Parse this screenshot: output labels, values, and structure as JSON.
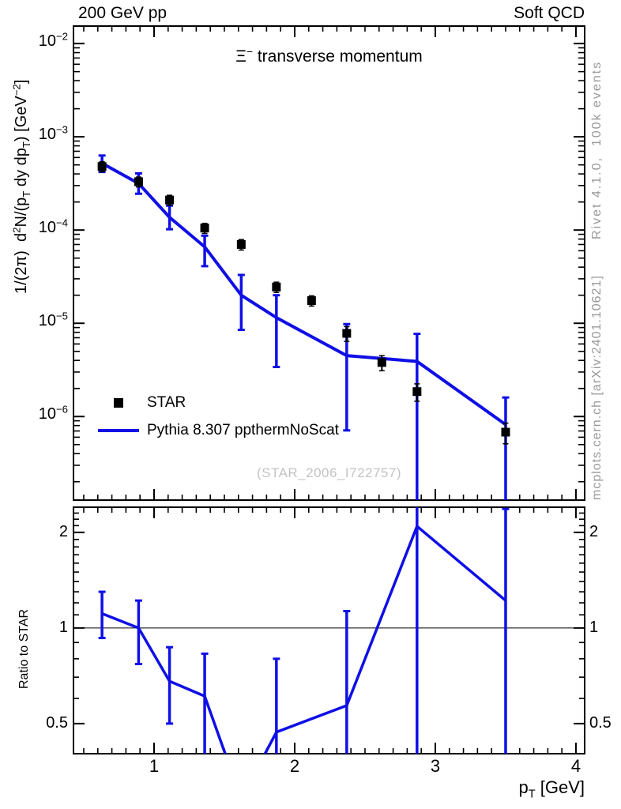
{
  "header": {
    "left": "200 GeV pp",
    "right": "Soft QCD"
  },
  "title_segments": [
    {
      "t": "Ξ",
      "s": ""
    },
    {
      "t": "−",
      "s": "sup"
    },
    {
      "t": " transverse momentum",
      "s": ""
    }
  ],
  "axis_labels": {
    "y_main_segments": [
      {
        "t": "1/(2π)  d",
        "s": ""
      },
      {
        "t": "2",
        "s": "sup"
      },
      {
        "t": "N/(p",
        "s": ""
      },
      {
        "t": "T",
        "s": "sub"
      },
      {
        "t": " dy dp",
        "s": ""
      },
      {
        "t": "T",
        "s": "sub"
      },
      {
        "t": ") [GeV",
        "s": ""
      },
      {
        "t": "−2",
        "s": "sup"
      },
      {
        "t": "]",
        "s": ""
      }
    ],
    "x_segments": [
      {
        "t": "p",
        "s": ""
      },
      {
        "t": "T",
        "s": "sub"
      },
      {
        "t": " [GeV]",
        "s": ""
      }
    ],
    "ratio": "Ratio to STAR"
  },
  "side_notes": {
    "top_right": "Rivet 4.1.0,  100k events",
    "bottom_right": "mcplots.cern.ch [arXiv:2401.10621]"
  },
  "watermark": "(STAR_2006_I722757)",
  "legend": [
    {
      "label": "STAR",
      "marker": "square",
      "color": "#000000"
    },
    {
      "label": "Pythia 8.307 ppthermNoScat",
      "marker": "line",
      "color": "#0f0fe6"
    }
  ],
  "colors": {
    "mc_blue": "#0f0fe6",
    "data_black": "#000000",
    "note_gray": "#999999",
    "watermark_gray": "#c3c3c3",
    "frame": "#000000"
  },
  "chart_data": {
    "type": "line",
    "title": "Xi- transverse momentum",
    "x_axis": {
      "label": "p_T [GeV]",
      "scale": "linear",
      "min": 0.427,
      "max": 4.062,
      "major_ticks": [
        1,
        2,
        3,
        4
      ],
      "minor_step": 0.1
    },
    "main_panel": {
      "scale": "log",
      "y_min": 1.27e-07,
      "y_max": 0.0154,
      "ylabel": "1/(2pi) d2N/(pT dy dpT) [GeV-2]",
      "decade_exponents": [
        -2,
        -3,
        -4,
        -5,
        -6
      ]
    },
    "ratio_panel": {
      "scale": "log",
      "y_min": 0.402,
      "y_max": 2.4,
      "ref_line": 1.0,
      "label": "Ratio to STAR",
      "major_ticks": [
        0.5,
        1,
        2
      ],
      "minor_ticks": [
        0.6,
        0.7,
        0.8,
        0.9,
        1.1,
        1.2,
        1.3,
        1.4,
        1.5,
        1.6,
        1.7,
        1.8,
        1.9,
        2.1,
        2.2,
        2.3
      ]
    },
    "series": {
      "data": {
        "name": "STAR",
        "color": "#000000",
        "x": [
          0.63,
          0.89,
          1.11,
          1.36,
          1.62,
          1.87,
          2.12,
          2.37,
          2.62,
          2.87,
          3.5
        ],
        "y": [
          0.00048,
          0.00033,
          0.00021,
          0.000105,
          7e-05,
          2.45e-05,
          1.75e-05,
          7.8e-06,
          3.8e-06,
          1.85e-06,
          6.8e-07
        ],
        "err": [
          6e-05,
          4e-05,
          2.6e-05,
          1.3e-05,
          9e-06,
          3.1e-06,
          2.2e-06,
          1.4e-06,
          7e-07,
          3.9e-07,
          1.7e-07
        ]
      },
      "mc": {
        "name": "Pythia 8.307 ppthermNoScat",
        "color": "#0f0fe6",
        "x": [
          0.63,
          0.89,
          1.11,
          1.36,
          1.62,
          1.87,
          2.37,
          2.87,
          3.5
        ],
        "y": [
          0.00052,
          0.000316,
          0.000137,
          6.6e-05,
          2e-05,
          1.15e-05,
          4.5e-06,
          3.9e-06,
          8.2e-07
        ],
        "err_lo": [
          0.00042,
          0.000245,
          0.000102,
          4.1e-05,
          8.5e-06,
          3.4e-06,
          7.1e-07,
          1e-09,
          1e-09
        ],
        "err_hi": [
          0.00063,
          0.000405,
          0.000183,
          8.7e-05,
          3.3e-05,
          2e-05,
          9.8e-06,
          7.7e-06,
          1.6e-06
        ]
      },
      "ratio": {
        "name": "Pythia / STAR",
        "color": "#0f0fe6",
        "x": [
          0.63,
          0.89,
          1.11,
          1.36,
          1.62,
          1.87,
          2.37,
          2.87,
          3.5
        ],
        "y": [
          1.11,
          1.0,
          0.68,
          0.61,
          0.29,
          0.47,
          0.57,
          2.09,
          1.22
        ],
        "err_lo": [
          0.93,
          0.77,
          0.5,
          0.05,
          null,
          0.05,
          0.05,
          0.05,
          0.05
        ],
        "err_hi": [
          1.3,
          1.22,
          0.87,
          0.83,
          null,
          0.8,
          1.13,
          9.9,
          2.37
        ]
      }
    }
  }
}
